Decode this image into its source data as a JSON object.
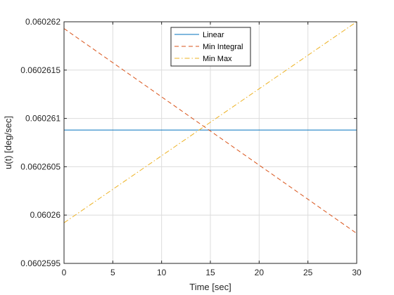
{
  "chart_data": {
    "type": "line",
    "xlabel": "Time [sec]",
    "ylabel": "u(t) [deg/sec]",
    "xlim": [
      0,
      30
    ],
    "ylim": [
      0.0602595,
      0.060262
    ],
    "x_ticks": [
      0,
      5,
      10,
      15,
      20,
      25,
      30
    ],
    "x_tick_labels": [
      "0",
      "5",
      "10",
      "15",
      "20",
      "25",
      "30"
    ],
    "y_ticks": [
      0.0602595,
      0.06026,
      0.0602605,
      0.060261,
      0.0602615,
      0.060262
    ],
    "y_tick_labels": [
      "0.0602595",
      "0.06026",
      "0.0602605",
      "0.060261",
      "0.0602615",
      "0.060262"
    ],
    "grid": true,
    "legend_position": "top-center",
    "series": [
      {
        "name": "Linear",
        "color": "#0072BD",
        "dash": "solid",
        "x": [
          0,
          30
        ],
        "y": [
          0.06026088,
          0.06026088
        ]
      },
      {
        "name": "Min Integral",
        "color": "#D95319",
        "dash": "dashed",
        "x": [
          0,
          30
        ],
        "y": [
          0.06026193,
          0.06025981
        ]
      },
      {
        "name": "Min Max",
        "color": "#EDB120",
        "dash": "dashdot",
        "x": [
          0,
          30
        ],
        "y": [
          0.06025992,
          0.060262
        ]
      }
    ]
  }
}
